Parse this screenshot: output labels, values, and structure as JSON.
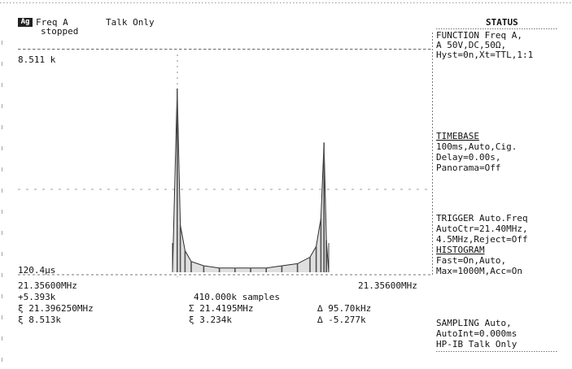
{
  "header": {
    "mode_badge": "Ag",
    "channel_label": "Freq A",
    "talk_only": "Talk Only",
    "state": "stopped"
  },
  "plot": {
    "top_value": "8.511 k",
    "bottom_value": "120.4μs",
    "x_start": "21.35600MHz",
    "x_end": "21.35600MHz",
    "samples": "410.000k samples"
  },
  "stats": {
    "row1": {
      "a": "+5.393k",
      "b": ""
    },
    "row2": {
      "a": "ξ 21.396250MHz",
      "b": "Σ 21.4195MHz",
      "c": "∆ 95.70kHz"
    },
    "row3": {
      "a": "ξ 8.513k",
      "b": "ξ 3.234k",
      "c": "∆ -5.277k"
    }
  },
  "status_panel": {
    "title": "STATUS",
    "function": "FUNCTION Freq A,",
    "function_2": "A 50V,DC,50Ω,",
    "function_3": "Hyst=0n,Xt=TTL,1:1",
    "timebase_title": "TIMEBASE",
    "timebase_1": "100ms,Auto,Cig.",
    "timebase_2": "Delay=0.00s,",
    "timebase_3": "Panorama=Off",
    "trigger_title": "TRIGGER Auto.Freq",
    "trigger_1": "AutoCtr=21.40MHz,",
    "trigger_2": "4.5MHz,Reject=Off",
    "histogram_title": "HISTOGRAM",
    "histogram_1": "Fast=On,Auto,",
    "histogram_2": "Max=1000M,Acc=On",
    "sampling_title": "SAMPLING Auto,",
    "sampling_1": "AutoInt=0.000ms",
    "sampling_2": "HP-IB Talk Only"
  },
  "chart_data": {
    "type": "area",
    "title": "",
    "xlabel": "",
    "ylabel": "",
    "x_range_label": [
      "21.35600MHz",
      "21.35600MHz"
    ],
    "samples_label": "410.000k samples",
    "series": [
      {
        "name": "",
        "points": [
          [
            0.0,
            0.0
          ],
          [
            0.03,
            0.85
          ],
          [
            0.05,
            0.22
          ],
          [
            0.08,
            0.1
          ],
          [
            0.12,
            0.05
          ],
          [
            0.2,
            0.03
          ],
          [
            0.3,
            0.02
          ],
          [
            0.4,
            0.02
          ],
          [
            0.5,
            0.02
          ],
          [
            0.6,
            0.02
          ],
          [
            0.7,
            0.03
          ],
          [
            0.8,
            0.04
          ],
          [
            0.88,
            0.07
          ],
          [
            0.92,
            0.12
          ],
          [
            0.95,
            0.25
          ],
          [
            0.97,
            0.6
          ],
          [
            0.985,
            0.15
          ],
          [
            1.0,
            0.0
          ]
        ]
      }
    ],
    "y_top": "8.511 k",
    "y_bottom": "120.4μs"
  }
}
